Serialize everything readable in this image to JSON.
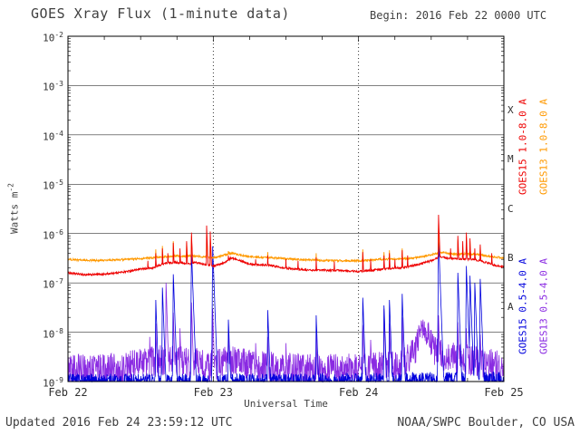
{
  "header": {
    "title": "GOES Xray Flux (1-minute data)",
    "begin": "Begin:  2016 Feb 22 0000 UTC"
  },
  "footer": {
    "updated": "Updated 2016 Feb 24 23:59:12 UTC",
    "source": "NOAA/SWPC Boulder, CO USA"
  },
  "colors": {
    "goes15_long": "#ee0000",
    "goes13_long": "#ff9900",
    "goes15_short": "#0000dd",
    "goes13_short": "#8a2be2",
    "frame": "#000000",
    "text": "#404040"
  },
  "chart_data": {
    "type": "line",
    "title": "GOES Xray Flux (1-minute data)",
    "xlabel": "Universal Time",
    "ylabel": "Watts m^-2",
    "ylabel_base": "Watts m",
    "ylabel_exp": "-2",
    "begin_time": "2016 Feb 22 0000 UTC",
    "updated_time": "2016 Feb 24 23:59:12 UTC",
    "x_unit": "hours since 2016 Feb 22 0000 UTC",
    "y_unit": "watts per square meter (log scale)",
    "xlim_hours": [
      0,
      72
    ],
    "ylim": [
      1e-09,
      0.01
    ],
    "ylim_log10": [
      -9,
      -2
    ],
    "x_ticks": [
      {
        "hour": 0,
        "label": "Feb 22"
      },
      {
        "hour": 24,
        "label": "Feb 23"
      },
      {
        "hour": 48,
        "label": "Feb 24"
      },
      {
        "hour": 72,
        "label": "Feb 25"
      }
    ],
    "y_ticks_exponents": [
      -2,
      -3,
      -4,
      -5,
      -6,
      -7,
      -8,
      -9
    ],
    "flare_classes": [
      {
        "label": "X",
        "log10_mid": -3.5
      },
      {
        "label": "M",
        "log10_mid": -4.5
      },
      {
        "label": "C",
        "log10_mid": -5.5
      },
      {
        "label": "B",
        "log10_mid": -6.5
      },
      {
        "label": "A",
        "log10_mid": -7.5
      }
    ],
    "grid": {
      "horizontal_decade_lines": true,
      "vertical_day_lines_dotted": true
    },
    "legend": [
      {
        "name": "GOES15 1.0-8.0 A",
        "color": "#ee0000"
      },
      {
        "name": "GOES13 1.0-8.0 A",
        "color": "#ff9900"
      },
      {
        "name": "GOES15 0.5-4.0 A",
        "color": "#0000dd"
      },
      {
        "name": "GOES13 0.5-4.0 A",
        "color": "#8a2be2"
      }
    ],
    "series": [
      {
        "id": "goes15-long",
        "name": "GOES15 1.0-8.0 A",
        "color_key": "goes15_long",
        "z": 4,
        "width": 0.9,
        "noise_log10": 0.02,
        "spike_rise": 0.06,
        "spike_decay": 0.3,
        "envelope": [
          [
            0,
            1.6e-07
          ],
          [
            3,
            1.45e-07
          ],
          [
            6,
            1.5e-07
          ],
          [
            9,
            1.65e-07
          ],
          [
            12,
            1.9e-07
          ],
          [
            14,
            2e-07
          ],
          [
            16,
            2.5e-07
          ],
          [
            18,
            2.6e-07
          ],
          [
            20,
            2.4e-07
          ],
          [
            21,
            2.6e-07
          ],
          [
            24,
            2.2e-07
          ],
          [
            26,
            2.6e-07
          ],
          [
            27,
            3.2e-07
          ],
          [
            28,
            3e-07
          ],
          [
            30,
            2.4e-07
          ],
          [
            33,
            2.3e-07
          ],
          [
            36,
            2e-07
          ],
          [
            40,
            1.8e-07
          ],
          [
            44,
            1.8e-07
          ],
          [
            48,
            1.7e-07
          ],
          [
            52,
            1.9e-07
          ],
          [
            56,
            2.1e-07
          ],
          [
            58,
            2.4e-07
          ],
          [
            60,
            2.8e-07
          ],
          [
            61.5,
            3.4e-07
          ],
          [
            63,
            3.1e-07
          ],
          [
            65,
            3e-07
          ],
          [
            67,
            3e-07
          ],
          [
            69,
            2.6e-07
          ],
          [
            71,
            2.2e-07
          ],
          [
            72,
            2.1e-07
          ]
        ],
        "spikes": [
          [
            13.2,
            2.8e-07
          ],
          [
            14.5,
            4e-07
          ],
          [
            15.6,
            5e-07
          ],
          [
            16.5,
            4e-07
          ],
          [
            17.4,
            6.5e-07
          ],
          [
            18.5,
            5e-07
          ],
          [
            19.6,
            7e-07
          ],
          [
            20.4,
            1.05e-06
          ],
          [
            22.9,
            1.45e-06
          ],
          [
            23.5,
            1.1e-06
          ],
          [
            26.5,
            3.6e-07
          ],
          [
            31,
            3e-07
          ],
          [
            33,
            3.6e-07
          ],
          [
            36,
            3e-07
          ],
          [
            38,
            2.8e-07
          ],
          [
            41,
            3.3e-07
          ],
          [
            44,
            2.7e-07
          ],
          [
            48.7,
            4.2e-07
          ],
          [
            50,
            3e-07
          ],
          [
            52.2,
            3.6e-07
          ],
          [
            53.1,
            4e-07
          ],
          [
            54,
            3e-07
          ],
          [
            55.2,
            4.6e-07
          ],
          [
            56.1,
            3.6e-07
          ],
          [
            61.2,
            2.4e-06
          ],
          [
            63.2,
            5e-07
          ],
          [
            64.4,
            9e-07
          ],
          [
            65.2,
            7e-07
          ],
          [
            65.8,
            1.05e-06
          ],
          [
            66.4,
            8e-07
          ],
          [
            67.2,
            5e-07
          ],
          [
            68.1,
            6e-07
          ],
          [
            70,
            4e-07
          ]
        ]
      },
      {
        "id": "goes13-long",
        "name": "GOES13 1.0-8.0 A",
        "color_key": "goes13_long",
        "z": 3,
        "width": 0.9,
        "noise_log10": 0.02,
        "spike_rise": 0.06,
        "spike_decay": 0.3,
        "envelope": [
          [
            0,
            3e-07
          ],
          [
            3,
            2.85e-07
          ],
          [
            6,
            2.85e-07
          ],
          [
            9,
            2.95e-07
          ],
          [
            12,
            3.1e-07
          ],
          [
            16,
            3.4e-07
          ],
          [
            18,
            3.5e-07
          ],
          [
            21,
            3.5e-07
          ],
          [
            24,
            3.2e-07
          ],
          [
            27,
            4e-07
          ],
          [
            30,
            3.4e-07
          ],
          [
            34,
            3.2e-07
          ],
          [
            38,
            3e-07
          ],
          [
            42,
            2.85e-07
          ],
          [
            46,
            2.8e-07
          ],
          [
            48,
            2.8e-07
          ],
          [
            52,
            3e-07
          ],
          [
            56,
            3.1e-07
          ],
          [
            58,
            3.3e-07
          ],
          [
            60,
            3.7e-07
          ],
          [
            61.5,
            4.2e-07
          ],
          [
            64,
            3.8e-07
          ],
          [
            66,
            3.9e-07
          ],
          [
            68,
            3.7e-07
          ],
          [
            70,
            3.4e-07
          ],
          [
            72,
            3.2e-07
          ]
        ],
        "spikes": [
          [
            14.5,
            4.8e-07
          ],
          [
            15.6,
            5.6e-07
          ],
          [
            17.4,
            7e-07
          ],
          [
            19.6,
            6.5e-07
          ],
          [
            20.4,
            9e-07
          ],
          [
            22.9,
            1.15e-06
          ],
          [
            23.5,
            9e-07
          ],
          [
            26.5,
            4.4e-07
          ],
          [
            33,
            4.2e-07
          ],
          [
            41,
            4e-07
          ],
          [
            48.7,
            4.8e-07
          ],
          [
            52.2,
            4.2e-07
          ],
          [
            53.1,
            4.6e-07
          ],
          [
            55.2,
            5e-07
          ],
          [
            61.2,
            1.55e-06
          ],
          [
            64.4,
            7.5e-07
          ],
          [
            65.8,
            8.5e-07
          ],
          [
            66.4,
            7e-07
          ],
          [
            68.1,
            5.5e-07
          ]
        ]
      },
      {
        "id": "goes15-short",
        "name": "GOES15 0.5-4.0 A",
        "color_key": "goes15_short",
        "z": 2,
        "width": 0.8,
        "noise_log10": 0.16,
        "spike_rise": 0.06,
        "spike_decay": 0.3,
        "envelope": [
          [
            0,
            1e-09
          ],
          [
            24,
            1e-09
          ],
          [
            48,
            1.05e-09
          ],
          [
            72,
            1.1e-09
          ]
        ],
        "spikes": [
          [
            14.5,
            4.5e-08
          ],
          [
            15.6,
            8e-08
          ],
          [
            17.4,
            1.5e-07
          ],
          [
            20.4,
            4.5e-07
          ],
          [
            23.9,
            5.5e-07
          ],
          [
            26.5,
            1.8e-08
          ],
          [
            33,
            2.8e-08
          ],
          [
            41,
            2.2e-08
          ],
          [
            48.7,
            5e-08
          ],
          [
            52.2,
            3.5e-08
          ],
          [
            53.1,
            4.5e-08
          ],
          [
            55.2,
            6e-08
          ],
          [
            61.2,
            8.5e-07
          ],
          [
            64.4,
            1.6e-07
          ],
          [
            65.8,
            2.2e-07
          ],
          [
            66.4,
            1.4e-07
          ],
          [
            67.2,
            1e-07
          ],
          [
            68.1,
            1.2e-07
          ]
        ]
      },
      {
        "id": "goes13-short",
        "name": "GOES13 0.5-4.0 A",
        "color_key": "goes13_short",
        "z": 1,
        "width": 0.8,
        "noise_log10": 0.32,
        "spike_rise": 0.05,
        "spike_decay": 0.25,
        "envelope": [
          [
            0,
            1.8e-09
          ],
          [
            4,
            1.7e-09
          ],
          [
            8,
            1.85e-09
          ],
          [
            12,
            2.2e-09
          ],
          [
            14,
            2.5e-09
          ],
          [
            16,
            2.8e-09
          ],
          [
            18,
            2.6e-09
          ],
          [
            20,
            2.4e-09
          ],
          [
            24,
            2.1e-09
          ],
          [
            27,
            2.7e-09
          ],
          [
            30,
            2.1e-09
          ],
          [
            34,
            1.9e-09
          ],
          [
            38,
            1.8e-09
          ],
          [
            42,
            1.7e-09
          ],
          [
            46,
            1.8e-09
          ],
          [
            50,
            1.9e-09
          ],
          [
            54,
            2.2e-09
          ],
          [
            56,
            2.6e-09
          ],
          [
            57.5,
            5e-09
          ],
          [
            58.8,
            1.3e-08
          ],
          [
            59.6,
            9e-09
          ],
          [
            60.5,
            4.5e-09
          ],
          [
            62,
            3.2e-09
          ],
          [
            64,
            3e-09
          ],
          [
            66,
            2.8e-09
          ],
          [
            68,
            2.5e-09
          ],
          [
            70,
            2.2e-09
          ],
          [
            72,
            2.1e-09
          ]
        ],
        "spikes": [
          [
            13.5,
            8e-09
          ],
          [
            14.5,
            1.5e-08
          ],
          [
            16.2,
            1e-07
          ],
          [
            17.4,
            2.5e-08
          ],
          [
            18.5,
            1.2e-08
          ],
          [
            20.4,
            4e-08
          ],
          [
            23.9,
            3e-08
          ],
          [
            26.5,
            9e-09
          ],
          [
            31,
            6e-09
          ],
          [
            33,
            8e-09
          ],
          [
            36,
            6e-09
          ],
          [
            41,
            9e-09
          ],
          [
            48.7,
            1.4e-08
          ],
          [
            50,
            7e-09
          ],
          [
            52.2,
            3e-08
          ],
          [
            53.1,
            1.5e-08
          ],
          [
            55.2,
            2e-08
          ],
          [
            61.2,
            2.2e-08
          ],
          [
            64.4,
            1.6e-08
          ],
          [
            65.8,
            1.2e-08
          ],
          [
            68.1,
            9e-09
          ]
        ]
      }
    ]
  }
}
